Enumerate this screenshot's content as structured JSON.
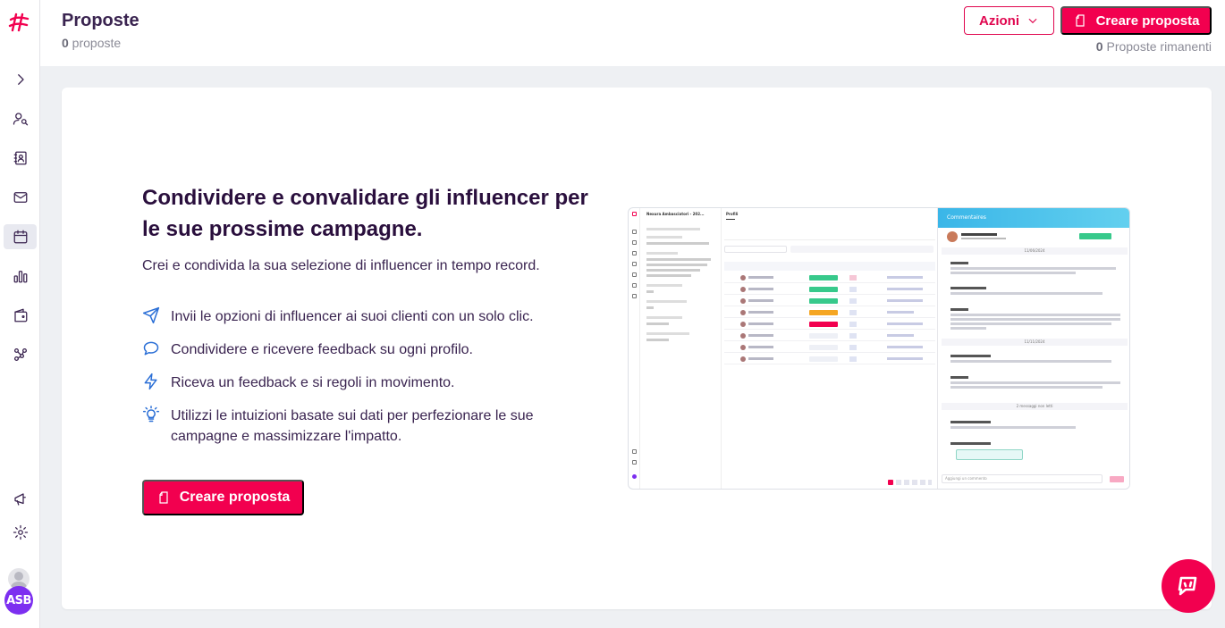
{
  "header": {
    "title": "Proposte",
    "count": "0",
    "count_label": " proposte",
    "actions_label": "Azioni",
    "create_label": "Creare proposta",
    "remaining_count": "0",
    "remaining_label": " Proposte rimanenti"
  },
  "sidebar": {
    "items": [
      {
        "icon": "chevron-right-icon"
      },
      {
        "icon": "user-search-icon"
      },
      {
        "icon": "contacts-icon"
      },
      {
        "icon": "mail-icon"
      },
      {
        "icon": "calendar-icon",
        "active": true
      },
      {
        "icon": "bar-chart-icon"
      },
      {
        "icon": "wallet-icon"
      },
      {
        "icon": "network-icon"
      },
      {
        "icon": "megaphone-icon"
      },
      {
        "icon": "gear-icon"
      }
    ],
    "avatar_initials": "ASB"
  },
  "empty_state": {
    "headline": "Condividere e convalidare gli influencer per le sue prossime campagne.",
    "lead": "Crei e condivida la sua selezione di influencer in tempo record.",
    "features": [
      {
        "icon": "send-icon",
        "text": "Invii le opzioni di influencer ai suoi clienti con un solo clic."
      },
      {
        "icon": "chat-bubble-icon",
        "text": "Condividere e ricevere feedback su ogni profilo."
      },
      {
        "icon": "lightning-icon",
        "text": "Riceva un feedback e si regoli in movimento."
      },
      {
        "icon": "lightbulb-icon",
        "text": "Utilizzi le intuizioni basate sui dati per perfezionare le sue campagne e massimizzare l'impatto."
      }
    ],
    "cta_label": "Creare proposta"
  },
  "preview": {
    "panel_title": "Commentaires",
    "proposal_name": "Nexura Ambasciatori - 202...",
    "tab": "Profili",
    "date_bar_1": "11/06/2024",
    "date_bar_2": "11/11/2024",
    "unread_bar": "2 messaggi non letti",
    "comment_placeholder": "Aggiungi un commento"
  },
  "colors": {
    "brand": "#f2004f",
    "accent_icon": "#2b6fd6",
    "title": "#3a2450"
  }
}
